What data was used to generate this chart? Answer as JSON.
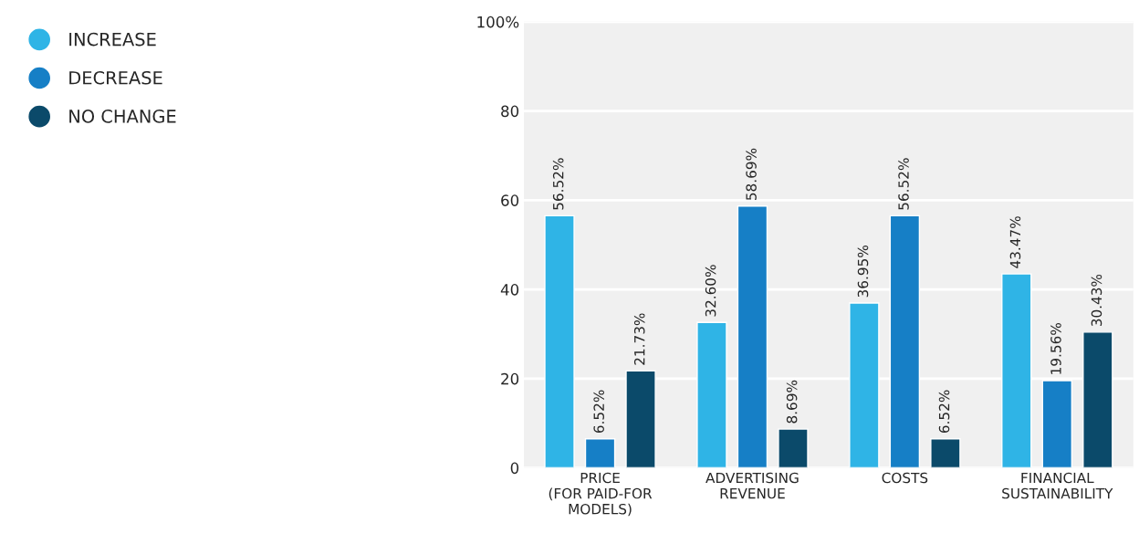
{
  "chart_data": {
    "type": "bar",
    "categories": [
      "PRICE\n(FOR PAID-FOR\nMODELS)",
      "ADVERTISING\nREVENUE",
      "COSTS",
      "FINANCIAL\nSUSTAINABILITY"
    ],
    "series": [
      {
        "name": "INCREASE",
        "color": "#2fb4e6",
        "values": [
          56.52,
          32.6,
          36.95,
          43.47
        ],
        "value_labels": [
          "56.52%",
          "32.60%",
          "36.95%",
          "43.47%"
        ]
      },
      {
        "name": "DECREASE",
        "color": "#167fc6",
        "values": [
          6.52,
          58.69,
          56.52,
          19.56
        ],
        "value_labels": [
          "6.52%",
          "58.69%",
          "56.52%",
          "19.56%"
        ]
      },
      {
        "name": "NO CHANGE",
        "color": "#0b4a6a",
        "values": [
          21.73,
          8.69,
          6.52,
          30.43
        ],
        "value_labels": [
          "21.73%",
          "8.69%",
          "6.52%",
          "30.43%"
        ]
      }
    ],
    "ylim": [
      0,
      100
    ],
    "yticks": [
      0,
      20,
      40,
      60,
      80,
      {
        "value": 100,
        "label": "100%"
      }
    ],
    "grid": "y",
    "legend": "top left"
  }
}
